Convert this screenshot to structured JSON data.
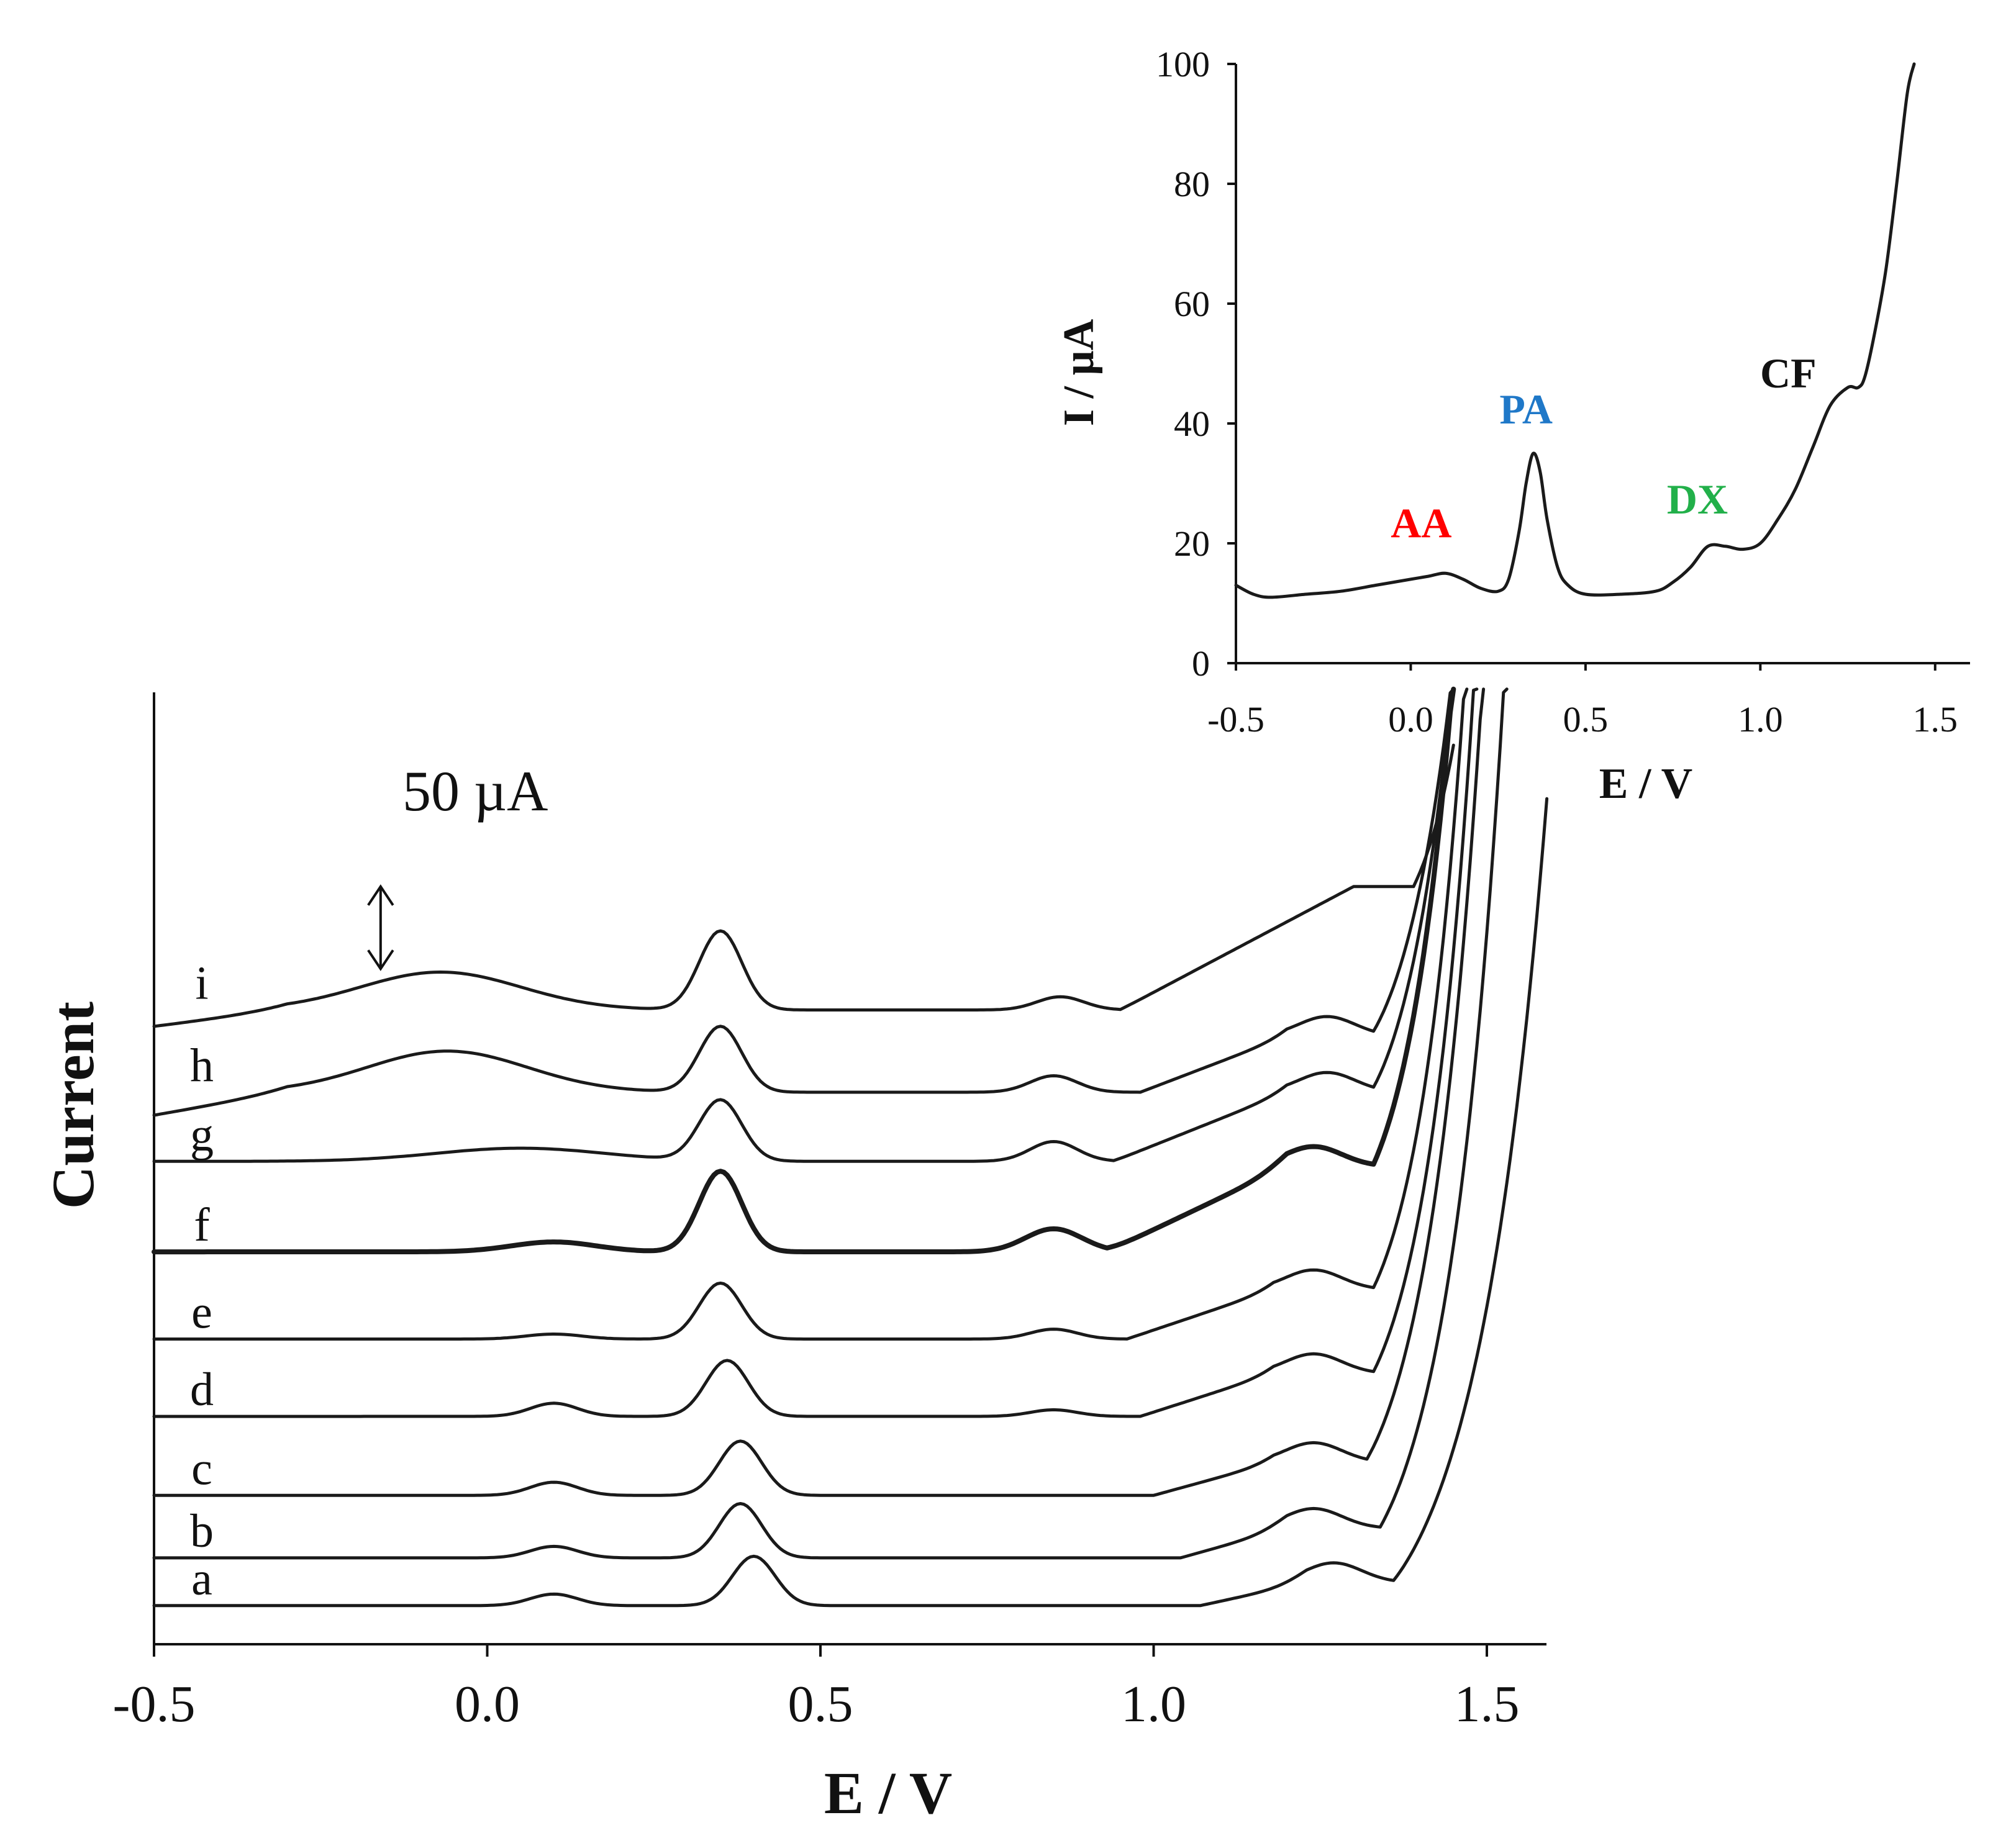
{
  "chart_data": [
    {
      "id": "main",
      "type": "line",
      "title": "",
      "xlabel": "E / V",
      "ylabel": "Current",
      "xlim": [
        -0.5,
        1.6
      ],
      "x_ticks": [
        -0.5,
        0.0,
        0.5,
        1.0,
        1.5
      ],
      "x_tick_labels": [
        "-0.5",
        "0.0",
        "0.5",
        "1.0",
        "1.5"
      ],
      "y_units": "µA (relative, offset traces)",
      "ylim": [
        0,
        565
      ],
      "scale_bar": {
        "label": "50 µA",
        "value": 50,
        "x_pos": -0.16,
        "y_center": 420
      },
      "series": [
        {
          "name": "a",
          "baseline": 8,
          "peaks": [
            [
              0.1,
              7,
              0.05
            ],
            [
              0.4,
              30,
              0.045
            ],
            [
              1.27,
              12,
              0.06
            ]
          ],
          "knee": [
            1.07,
            1.23,
            14
          ],
          "rise": [
            1.36,
            60,
            0.105
          ],
          "end_x": 1.59,
          "tail": 0
        },
        {
          "name": "b",
          "baseline": 37,
          "peaks": [
            [
              0.1,
              7,
              0.05
            ],
            [
              0.38,
              33,
              0.045
            ],
            [
              1.24,
              12,
              0.06
            ]
          ],
          "knee": [
            1.04,
            1.2,
            18
          ],
          "rise": [
            1.34,
            65,
            0.085
          ],
          "end_x": 1.57,
          "tail": 0
        },
        {
          "name": "c",
          "baseline": 75,
          "peaks": [
            [
              0.1,
              8,
              0.05
            ],
            [
              0.38,
              33,
              0.045
            ],
            [
              1.24,
              12,
              0.06
            ]
          ],
          "knee": [
            1.0,
            1.18,
            20
          ],
          "rise": [
            1.32,
            65,
            0.082
          ],
          "end_x": 1.55,
          "tail": 0
        },
        {
          "name": "d",
          "baseline": 123,
          "peaks": [
            [
              0.1,
              8,
              0.05
            ],
            [
              0.36,
              34,
              0.045
            ],
            [
              0.85,
              4,
              0.05
            ],
            [
              1.24,
              12,
              0.06
            ]
          ],
          "knee": [
            0.98,
            1.18,
            26
          ],
          "rise": [
            1.33,
            65,
            0.075
          ],
          "end_x": 1.51,
          "tail": 0
        },
        {
          "name": "e",
          "baseline": 170,
          "peaks": [
            [
              0.1,
              3,
              0.06
            ],
            [
              0.35,
              34,
              0.045
            ],
            [
              0.85,
              6,
              0.05
            ],
            [
              1.24,
              12,
              0.06
            ]
          ],
          "knee": [
            0.96,
            1.18,
            30
          ],
          "rise": [
            1.33,
            65,
            0.072
          ],
          "end_x": 1.49,
          "tail": 0
        },
        {
          "name": "f",
          "baseline": 223,
          "peaks": [
            [
              0.1,
              6,
              0.09
            ],
            [
              0.35,
              49,
              0.045
            ],
            [
              0.85,
              14,
              0.06
            ],
            [
              1.24,
              12,
              0.06
            ]
          ],
          "knee": [
            0.93,
            1.2,
            52
          ],
          "rise": [
            1.33,
            70,
            0.072
          ],
          "end_x": 1.49,
          "tail": 0
        },
        {
          "name": "g",
          "baseline": 278,
          "peaks": [
            [
              0.05,
              8,
              0.18
            ],
            [
              0.35,
              37,
              0.045
            ],
            [
              0.85,
              12,
              0.05
            ],
            [
              1.26,
              12,
              0.06
            ]
          ],
          "knee": [
            0.94,
            1.2,
            42
          ],
          "rise": [
            1.33,
            65,
            0.075
          ],
          "end_x": 1.47,
          "tail": 0
        },
        {
          "name": "h",
          "baseline": 320,
          "peaks": [
            [
              -0.06,
              25,
              0.17
            ],
            [
              0.35,
              40,
              0.045
            ],
            [
              0.85,
              10,
              0.05
            ],
            [
              1.26,
              12,
              0.06
            ]
          ],
          "knee": [
            0.98,
            1.2,
            34
          ],
          "rise": [
            1.33,
            65,
            0.08
          ],
          "end_x": 1.5,
          "tail": 14
        },
        {
          "name": "i",
          "baseline": 370,
          "peaks": [
            [
              -0.07,
              23,
              0.17
            ],
            [
              0.35,
              48,
              0.045
            ],
            [
              0.86,
              8,
              0.05
            ]
          ],
          "knee": [
            0.95,
            1.3,
            75
          ],
          "rise": [
            1.39,
            50,
            0.06
          ],
          "end_x": 1.45,
          "tail": 10
        }
      ]
    },
    {
      "id": "inset",
      "type": "line",
      "xlabel": "E / V",
      "ylabel": "I / µA",
      "xlim": [
        -0.5,
        1.6
      ],
      "ylim": [
        0,
        100
      ],
      "x_ticks": [
        -0.5,
        0.0,
        0.5,
        1.0,
        1.5
      ],
      "x_tick_labels": [
        "-0.5",
        "0.0",
        "0.5",
        "1.0",
        "1.5"
      ],
      "y_ticks": [
        0,
        20,
        40,
        60,
        80,
        100
      ],
      "y_tick_labels": [
        "0",
        "20",
        "40",
        "60",
        "80",
        "100"
      ],
      "points": [
        [
          -0.5,
          13
        ],
        [
          -0.45,
          11.5
        ],
        [
          -0.4,
          11
        ],
        [
          -0.3,
          11.5
        ],
        [
          -0.2,
          12
        ],
        [
          -0.1,
          13
        ],
        [
          0.0,
          14
        ],
        [
          0.05,
          14.5
        ],
        [
          0.1,
          15
        ],
        [
          0.15,
          14
        ],
        [
          0.2,
          12.5
        ],
        [
          0.25,
          12
        ],
        [
          0.28,
          14
        ],
        [
          0.31,
          22
        ],
        [
          0.33,
          30
        ],
        [
          0.35,
          35
        ],
        [
          0.37,
          32
        ],
        [
          0.39,
          24
        ],
        [
          0.42,
          16
        ],
        [
          0.45,
          13
        ],
        [
          0.5,
          11.5
        ],
        [
          0.6,
          11.5
        ],
        [
          0.7,
          12
        ],
        [
          0.75,
          13.5
        ],
        [
          0.8,
          16
        ],
        [
          0.85,
          19.5
        ],
        [
          0.9,
          19.5
        ],
        [
          0.95,
          19
        ],
        [
          1.0,
          20
        ],
        [
          1.05,
          24
        ],
        [
          1.1,
          29
        ],
        [
          1.15,
          36
        ],
        [
          1.2,
          43
        ],
        [
          1.25,
          46
        ],
        [
          1.28,
          46
        ],
        [
          1.3,
          48
        ],
        [
          1.33,
          56
        ],
        [
          1.36,
          66
        ],
        [
          1.39,
          80
        ],
        [
          1.42,
          95
        ],
        [
          1.44,
          101
        ]
      ],
      "annotations": [
        {
          "label": "AA",
          "x": 0.03,
          "y": 21,
          "color": "#ff0000"
        },
        {
          "label": "PA",
          "x": 0.33,
          "y": 40,
          "color": "#1f78c8"
        },
        {
          "label": "DX",
          "x": 0.82,
          "y": 25,
          "color": "#22b04a"
        },
        {
          "label": "CF",
          "x": 1.08,
          "y": 46,
          "color": "#111111"
        }
      ]
    }
  ]
}
